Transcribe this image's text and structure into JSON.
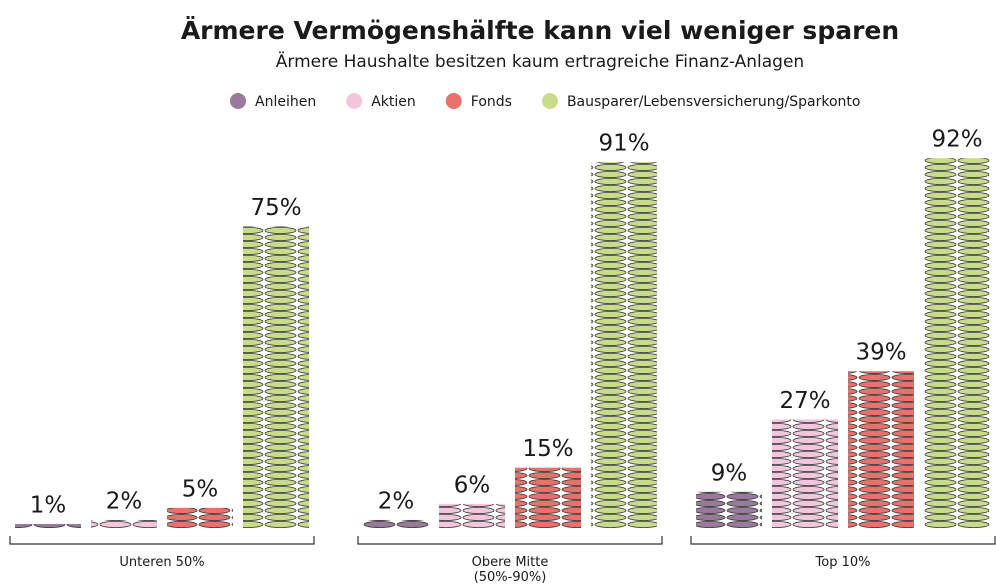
{
  "chart_data": {
    "type": "bar",
    "title": "Ärmere Vermögenshälfte kann viel weniger sparen",
    "subtitle": "Ärmere Haushalte besitzen kaum ertragreiche Finanz-Anlagen",
    "categories": [
      "Unteren 50%",
      "Obere Mitte (50%-90%)",
      "Top 10%"
    ],
    "series": [
      {
        "name": "Anleihen",
        "color": "#9a7a9c",
        "values": [
          1,
          2,
          9
        ],
        "value_labels": [
          "1%",
          "2%",
          "9%"
        ]
      },
      {
        "name": "Aktien",
        "color": "#f3c6dd",
        "values": [
          2,
          6,
          27
        ],
        "value_labels": [
          "2%",
          "6%",
          "27%"
        ]
      },
      {
        "name": "Fonds",
        "color": "#e9716b",
        "values": [
          5,
          15,
          39
        ],
        "value_labels": [
          "5%",
          "15%",
          "39%"
        ]
      },
      {
        "name": "Bausparer/Lebensversicherung/Sparkonto",
        "color": "#c9dc8a",
        "values": [
          75,
          91,
          92
        ],
        "value_labels": [
          "75%",
          "91%",
          "92%"
        ]
      }
    ],
    "ylim": [
      0,
      100
    ]
  }
}
